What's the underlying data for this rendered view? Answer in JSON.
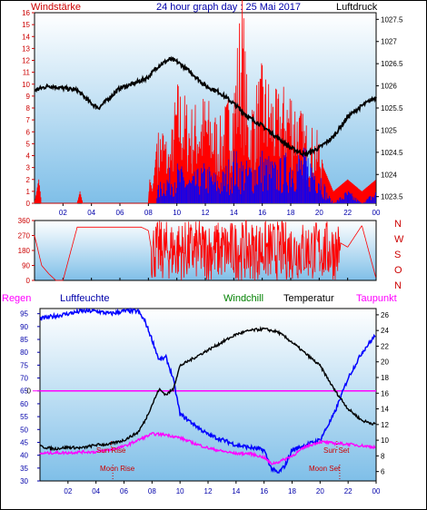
{
  "header": {
    "left_label": "Windstärke",
    "title": "24 hour graph day : 25 Mai 2017",
    "right_label": "Luftdruck"
  },
  "colors": {
    "wind": "#ff0000",
    "gust": "#0000ff",
    "pressure": "#000000",
    "humidity": "#0000ff",
    "temperature": "#000000",
    "dewpoint": "#ff00ff",
    "rain": "#ff00ff",
    "sun_moon": "#cc0000",
    "windchill_label": "#008000",
    "panel_gradient_top": "#ffffff",
    "panel_gradient_bottom": "#7fbfe8"
  },
  "bottom_labels": {
    "regen": "Regen",
    "luftfeuchte": "Luftfeuchte",
    "windchill": "Windchill",
    "temperatur": "Temperatur",
    "taupunkt": "Taupunkt"
  },
  "direction_labels": [
    "N",
    "W",
    "S",
    "O",
    "N"
  ],
  "annotations": {
    "sun_rise": "Sun Rise",
    "sun_set": "Sun Set",
    "moon_rise": "Moon Rise",
    "moon_set": "Moon Set",
    "sun_rise_hour": 5.1,
    "sun_set_hour": 21.2,
    "moon_rise_hour": 5.2,
    "moon_set_hour": 21.4
  },
  "chart_data": [
    {
      "type": "line",
      "x_ticks": [
        "02",
        "04",
        "06",
        "08",
        "10",
        "12",
        "14",
        "16",
        "18",
        "20",
        "22",
        "00"
      ],
      "x_range_hours": [
        0,
        24
      ],
      "left_axis": {
        "label": "Windstärke",
        "range": [
          0,
          16
        ],
        "ticks": [
          "0",
          "1",
          "2",
          "3",
          "4",
          "5",
          "6",
          "7",
          "8",
          "9",
          "10",
          "11",
          "12",
          "13",
          "14",
          "15",
          "16"
        ]
      },
      "right_axis": {
        "label": "Luftdruck",
        "range": [
          1023.35,
          1027.65
        ],
        "ticks": [
          "1023.5",
          "1024",
          "1024.5",
          "1025",
          "1025.5",
          "1026",
          "1026.5",
          "1027",
          "1027.5"
        ]
      },
      "series": [
        {
          "name": "Luftdruck",
          "axis": "right",
          "x": [
            0,
            1,
            2,
            3,
            4,
            4.5,
            5,
            6,
            7,
            8,
            8.7,
            9.5,
            10,
            11,
            12,
            13,
            14,
            15,
            16,
            17,
            18,
            19,
            20,
            21,
            22,
            23,
            24
          ],
          "y": [
            1025.9,
            1026.0,
            1025.95,
            1025.9,
            1025.6,
            1025.5,
            1025.65,
            1025.95,
            1026.05,
            1026.2,
            1026.45,
            1026.6,
            1026.55,
            1026.3,
            1026.0,
            1025.85,
            1025.6,
            1025.3,
            1025.1,
            1024.85,
            1024.6,
            1024.45,
            1024.6,
            1024.85,
            1025.3,
            1025.55,
            1025.75
          ]
        },
        {
          "name": "Windstärke",
          "x": [
            0,
            0.3,
            0.5,
            3,
            3.2,
            3.4,
            8,
            8.1,
            8.3,
            8.6,
            9,
            9.5,
            10,
            11,
            12,
            13,
            14,
            14.6,
            15,
            16,
            17,
            18,
            19,
            20,
            20.3,
            21,
            22,
            23,
            24
          ],
          "y": [
            0,
            2,
            0,
            0,
            1,
            0,
            0,
            2,
            1,
            5,
            6,
            4,
            9,
            7,
            8,
            6,
            9,
            16,
            7,
            10,
            8,
            9,
            6,
            5,
            3,
            1,
            2,
            1,
            2
          ]
        },
        {
          "name": "Böen",
          "x": [
            8.6,
            9,
            10,
            11,
            12,
            13,
            14,
            15,
            16,
            17,
            18,
            19,
            20,
            20.5,
            21,
            22,
            23,
            24
          ],
          "y": [
            1,
            2,
            3,
            2,
            3,
            2,
            4,
            3,
            4,
            3,
            4,
            4,
            3,
            1,
            0,
            1,
            0,
            1
          ]
        }
      ]
    },
    {
      "type": "line",
      "x_range_hours": [
        0,
        24
      ],
      "left_axis": {
        "range": [
          0,
          360
        ],
        "ticks": [
          "0",
          "90",
          "180",
          "270",
          "360"
        ]
      },
      "right_axis": {
        "labels": [
          "N",
          "W",
          "S",
          "O",
          "N"
        ]
      },
      "series": [
        {
          "name": "Windrichtung",
          "x": [
            0,
            0.5,
            1,
            1.5,
            2,
            3,
            6,
            7.5,
            8,
            8.5,
            9,
            10,
            11,
            12,
            13,
            14,
            15,
            16,
            17,
            18,
            19,
            20,
            21,
            22,
            23,
            24
          ],
          "y": [
            270,
            90,
            40,
            0,
            0,
            320,
            320,
            320,
            300,
            30,
            340,
            60,
            330,
            40,
            300,
            80,
            350,
            20,
            340,
            60,
            300,
            40,
            250,
            200,
            330,
            10
          ]
        }
      ]
    },
    {
      "type": "line",
      "x_range_hours": [
        0,
        24
      ],
      "left_axis": {
        "label": "Luftfeuchte",
        "range": [
          30,
          97
        ],
        "ticks": [
          "30",
          "35",
          "40",
          "45",
          "50",
          "55",
          "60",
          "65",
          "70",
          "75",
          "80",
          "85",
          "90",
          "95"
        ]
      },
      "right_axis": {
        "label": "Temperatur",
        "range": [
          4.8,
          26.8
        ],
        "ticks": [
          "6",
          "8",
          "10",
          "12",
          "14",
          "16",
          "18",
          "20",
          "22",
          "24",
          "26"
        ]
      },
      "rain_axis": {
        "label": "Regen",
        "ticks": [
          "0"
        ]
      },
      "series": [
        {
          "name": "Luftfeuchte",
          "axis": "left",
          "x": [
            0,
            1,
            2,
            3,
            4,
            5,
            6,
            7,
            7.5,
            8,
            8.5,
            9,
            9.5,
            10,
            11,
            12,
            13,
            14,
            15,
            16,
            16.5,
            17,
            17.5,
            18,
            19,
            20,
            21,
            22,
            23,
            24
          ],
          "y": [
            93,
            94,
            95,
            96,
            96,
            95,
            96,
            96,
            92,
            85,
            77,
            78,
            70,
            56,
            52,
            48,
            46,
            44,
            43,
            42,
            35,
            33,
            36,
            42,
            44,
            46,
            56,
            70,
            80,
            87
          ]
        },
        {
          "name": "Temperatur",
          "axis": "right",
          "x": [
            0,
            1,
            2,
            3,
            4,
            5,
            6,
            6.5,
            7,
            7.5,
            8,
            8.5,
            9,
            9.5,
            10,
            11,
            12,
            13,
            14,
            15,
            16,
            17,
            18,
            19,
            20,
            21,
            22,
            23,
            24
          ],
          "y": [
            9.2,
            8.9,
            9.1,
            9.0,
            9.4,
            9.5,
            10.0,
            10.5,
            11.0,
            12.5,
            14.5,
            16.5,
            15.8,
            16.5,
            19.5,
            20.5,
            21.5,
            22.5,
            23.5,
            24.0,
            24.2,
            23.8,
            22.5,
            21.0,
            19.5,
            16.5,
            14.0,
            12.5,
            12.0
          ]
        },
        {
          "name": "Taupunkt",
          "axis": "right",
          "x": [
            0,
            1,
            2,
            3,
            4,
            5,
            6,
            7,
            8,
            9,
            10,
            11,
            12,
            13,
            14,
            15,
            16,
            16.5,
            17,
            17.5,
            18,
            19,
            20,
            21,
            22,
            23,
            24
          ],
          "y": [
            8.3,
            8.4,
            8.4,
            8.5,
            8.5,
            8.8,
            9.2,
            10.0,
            10.8,
            10.7,
            10.3,
            9.6,
            9.0,
            8.6,
            8.3,
            8.3,
            7.8,
            7.0,
            7.2,
            7.6,
            8.0,
            9.2,
            9.8,
            9.6,
            9.5,
            9.3,
            9.1
          ]
        },
        {
          "name": "Regen",
          "axis": "rain",
          "x": [
            0,
            24
          ],
          "y": [
            0,
            0
          ]
        }
      ]
    }
  ]
}
